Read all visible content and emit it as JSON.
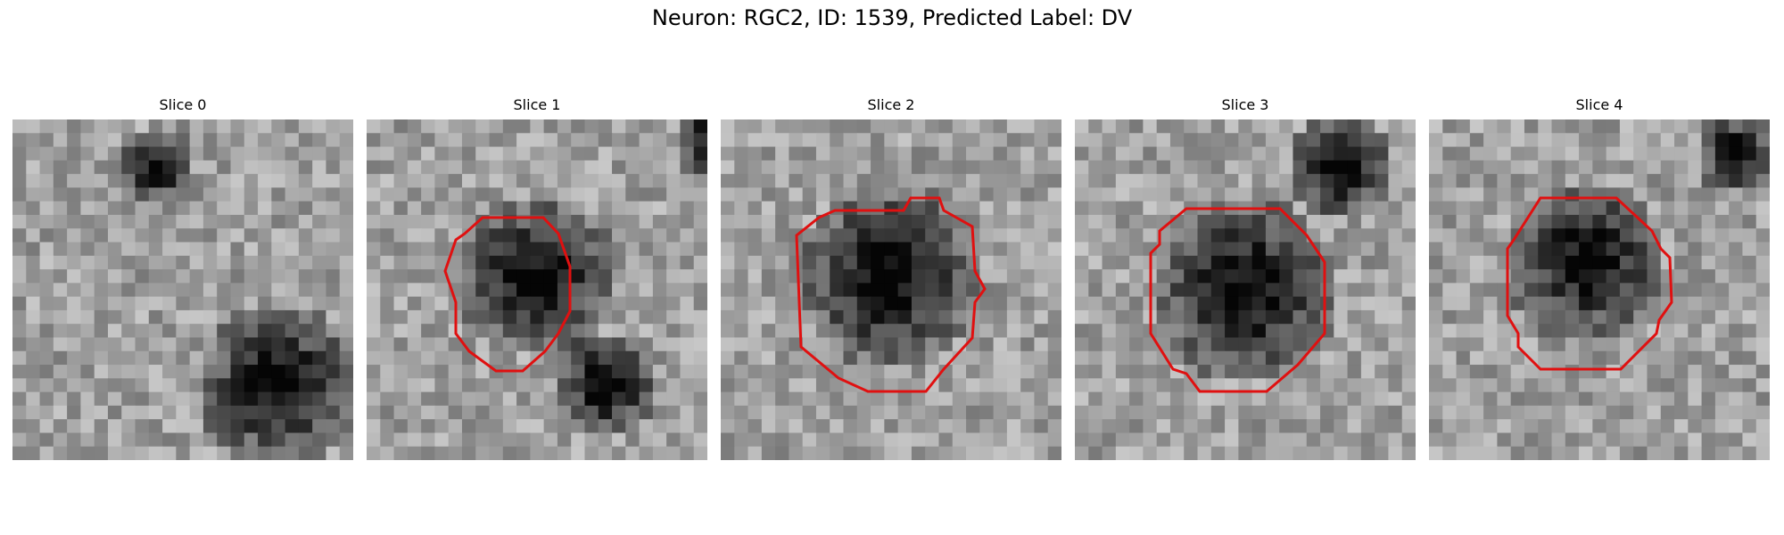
{
  "figure": {
    "title": "Neuron: RGC2, ID: 1539, Predicted Label: DV"
  },
  "panels": [
    {
      "title": "Slice 0",
      "has_contour": false
    },
    {
      "title": "Slice 1",
      "has_contour": true
    },
    {
      "title": "Slice 2",
      "has_contour": true
    },
    {
      "title": "Slice 3",
      "has_contour": true
    },
    {
      "title": "Slice 4",
      "has_contour": true
    }
  ],
  "colors": {
    "contour": "#e01010",
    "background": "#ffffff"
  }
}
